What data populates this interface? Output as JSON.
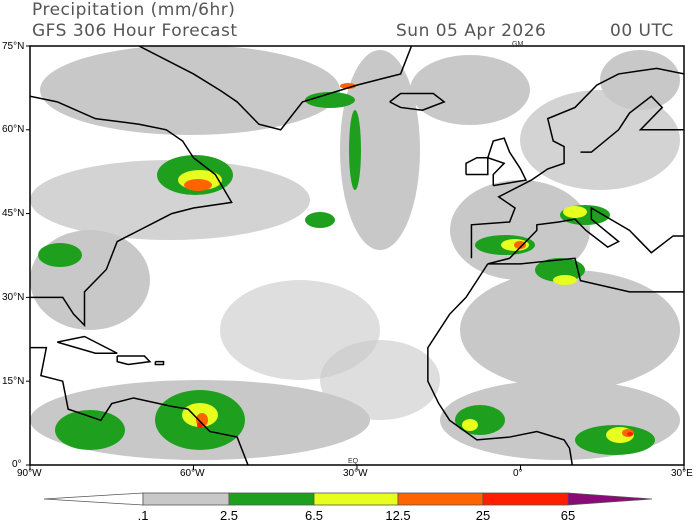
{
  "header": {
    "title": "Precipitation (mm/6hr)",
    "subtitle": "GFS 306 Hour Forecast",
    "date": "Sun 05 Apr 2026",
    "time": "00 UTC"
  },
  "map": {
    "extent": {
      "lon": [
        -90,
        30
      ],
      "lat": [
        0,
        75
      ]
    },
    "lat_labels": [
      "75°N",
      "60°N",
      "45°N",
      "30°N",
      "15°N",
      "0°"
    ],
    "lon_labels": [
      "90°W",
      "60°W",
      "30°W",
      "0°",
      "30°E"
    ],
    "marker_labels": [
      "GM",
      "EQ"
    ]
  },
  "colorbar": {
    "labels": [
      ".1",
      "2.5",
      "6.5",
      "12.5",
      "25",
      "65"
    ],
    "colors": [
      "#ffffff",
      "#c8c8c8",
      "#1ea01e",
      "#e6ff1e",
      "#ff6400",
      "#ff1e00",
      "#8c0a78"
    ]
  }
}
